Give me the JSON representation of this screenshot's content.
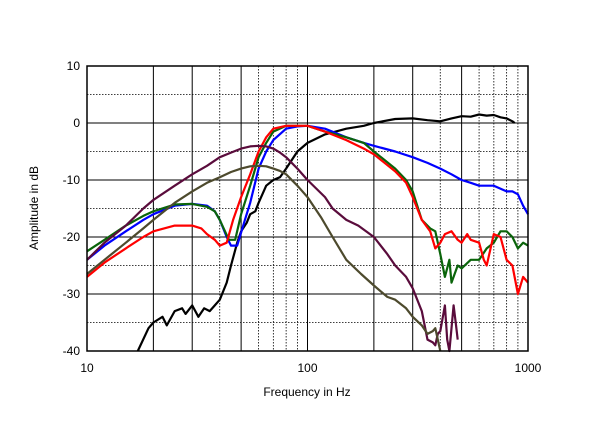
{
  "chart_data": {
    "type": "line",
    "title": "",
    "xlabel": "Frequency in Hz",
    "ylabel": "Amplitude in dB",
    "xscale": "log",
    "xlim": [
      10,
      1000
    ],
    "ylim": [
      -40,
      10
    ],
    "xticks": [
      "10",
      "100",
      "1000"
    ],
    "yticks": [
      "10",
      "0",
      "-10",
      "-20",
      "-30",
      "-40"
    ],
    "grid": true,
    "legend": "none",
    "series": [
      {
        "name": "black",
        "color": "#000000",
        "points": [
          [
            17,
            -40
          ],
          [
            19,
            -36
          ],
          [
            20,
            -35
          ],
          [
            22,
            -34
          ],
          [
            23,
            -35.5
          ],
          [
            25,
            -33
          ],
          [
            27,
            -32.5
          ],
          [
            28,
            -33.5
          ],
          [
            30,
            -32
          ],
          [
            32,
            -34
          ],
          [
            34,
            -32.5
          ],
          [
            36,
            -33
          ],
          [
            38,
            -32
          ],
          [
            40,
            -31
          ],
          [
            43,
            -28
          ],
          [
            45,
            -25
          ],
          [
            48,
            -21
          ],
          [
            50,
            -19
          ],
          [
            53,
            -17.5
          ],
          [
            55,
            -16
          ],
          [
            58,
            -15.5
          ],
          [
            60,
            -14
          ],
          [
            65,
            -11
          ],
          [
            70,
            -10
          ],
          [
            75,
            -9.5
          ],
          [
            80,
            -8
          ],
          [
            90,
            -5
          ],
          [
            100,
            -3.5
          ],
          [
            120,
            -2
          ],
          [
            150,
            -1
          ],
          [
            180,
            -0.5
          ],
          [
            200,
            0
          ],
          [
            250,
            0.7
          ],
          [
            300,
            0.8
          ],
          [
            350,
            0.5
          ],
          [
            400,
            0.3
          ],
          [
            450,
            0.8
          ],
          [
            500,
            1.2
          ],
          [
            550,
            1.1
          ],
          [
            600,
            1.5
          ],
          [
            650,
            1.3
          ],
          [
            700,
            1.4
          ],
          [
            750,
            1
          ],
          [
            800,
            0.8
          ],
          [
            850,
            0.3
          ],
          [
            870,
            0
          ]
        ]
      },
      {
        "name": "blue",
        "color": "#0000ff",
        "points": [
          [
            10,
            -24
          ],
          [
            12,
            -21.5
          ],
          [
            15,
            -19
          ],
          [
            18,
            -17
          ],
          [
            20,
            -16
          ],
          [
            25,
            -14.5
          ],
          [
            30,
            -14.2
          ],
          [
            35,
            -14.5
          ],
          [
            38,
            -15.5
          ],
          [
            40,
            -17
          ],
          [
            43,
            -20
          ],
          [
            45,
            -21.5
          ],
          [
            48,
            -21.5
          ],
          [
            52,
            -17
          ],
          [
            55,
            -14
          ],
          [
            60,
            -8
          ],
          [
            65,
            -5
          ],
          [
            70,
            -3
          ],
          [
            80,
            -1
          ],
          [
            90,
            -0.6
          ],
          [
            100,
            -0.5
          ],
          [
            120,
            -1
          ],
          [
            150,
            -2.5
          ],
          [
            180,
            -3.5
          ],
          [
            200,
            -4
          ],
          [
            250,
            -5
          ],
          [
            300,
            -6
          ],
          [
            350,
            -7
          ],
          [
            400,
            -8
          ],
          [
            450,
            -9
          ],
          [
            500,
            -10
          ],
          [
            550,
            -10.5
          ],
          [
            600,
            -11
          ],
          [
            700,
            -11
          ],
          [
            800,
            -12
          ],
          [
            850,
            -12
          ],
          [
            900,
            -12.5
          ],
          [
            950,
            -14.5
          ],
          [
            1000,
            -16
          ]
        ]
      },
      {
        "name": "green",
        "color": "#0a640a",
        "points": [
          [
            10,
            -22.5
          ],
          [
            12,
            -20.5
          ],
          [
            15,
            -18
          ],
          [
            18,
            -16.3
          ],
          [
            20,
            -15.5
          ],
          [
            25,
            -14.3
          ],
          [
            30,
            -14.2
          ],
          [
            35,
            -14.7
          ],
          [
            38,
            -15.5
          ],
          [
            40,
            -17
          ],
          [
            44,
            -20.5
          ],
          [
            47,
            -20.5
          ],
          [
            50,
            -16
          ],
          [
            55,
            -11
          ],
          [
            60,
            -6
          ],
          [
            65,
            -3.5
          ],
          [
            70,
            -1.5
          ],
          [
            80,
            -0.5
          ],
          [
            90,
            -0.5
          ],
          [
            100,
            -0.5
          ],
          [
            120,
            -1.5
          ],
          [
            150,
            -2.5
          ],
          [
            180,
            -3.5
          ],
          [
            200,
            -5
          ],
          [
            250,
            -8
          ],
          [
            280,
            -10
          ],
          [
            300,
            -12
          ],
          [
            330,
            -17
          ],
          [
            360,
            -18.5
          ],
          [
            380,
            -19
          ],
          [
            400,
            -23
          ],
          [
            420,
            -27
          ],
          [
            440,
            -24
          ],
          [
            450,
            -28
          ],
          [
            480,
            -25
          ],
          [
            500,
            -25.5
          ],
          [
            550,
            -24
          ],
          [
            600,
            -24
          ],
          [
            650,
            -22
          ],
          [
            700,
            -21
          ],
          [
            750,
            -19
          ],
          [
            800,
            -19
          ],
          [
            850,
            -20
          ],
          [
            900,
            -22
          ],
          [
            950,
            -21
          ],
          [
            1000,
            -21.5
          ]
        ]
      },
      {
        "name": "red",
        "color": "#ff0000",
        "points": [
          [
            10,
            -27
          ],
          [
            12,
            -24.5
          ],
          [
            15,
            -22
          ],
          [
            18,
            -20
          ],
          [
            20,
            -19
          ],
          [
            25,
            -18
          ],
          [
            30,
            -18
          ],
          [
            33,
            -18.5
          ],
          [
            35,
            -19.5
          ],
          [
            38,
            -20.5
          ],
          [
            40,
            -21.5
          ],
          [
            43,
            -21
          ],
          [
            46,
            -17
          ],
          [
            50,
            -13
          ],
          [
            55,
            -9
          ],
          [
            60,
            -5
          ],
          [
            65,
            -2.5
          ],
          [
            70,
            -1
          ],
          [
            80,
            -0.5
          ],
          [
            90,
            -0.5
          ],
          [
            100,
            -0.5
          ],
          [
            120,
            -1.5
          ],
          [
            150,
            -3
          ],
          [
            180,
            -4.5
          ],
          [
            200,
            -5.5
          ],
          [
            250,
            -8.5
          ],
          [
            280,
            -10.5
          ],
          [
            300,
            -13
          ],
          [
            330,
            -17
          ],
          [
            360,
            -19
          ],
          [
            380,
            -22
          ],
          [
            400,
            -21
          ],
          [
            420,
            -19.5
          ],
          [
            450,
            -19
          ],
          [
            480,
            -20.5
          ],
          [
            500,
            -21
          ],
          [
            530,
            -19.5
          ],
          [
            550,
            -20.5
          ],
          [
            600,
            -21
          ],
          [
            630,
            -24
          ],
          [
            650,
            -25
          ],
          [
            700,
            -19.5
          ],
          [
            750,
            -20
          ],
          [
            800,
            -24
          ],
          [
            850,
            -25
          ],
          [
            900,
            -30
          ],
          [
            950,
            -27
          ],
          [
            1000,
            -28
          ]
        ]
      },
      {
        "name": "maroon",
        "color": "#5a0c3c",
        "points": [
          [
            10,
            -24
          ],
          [
            12,
            -21
          ],
          [
            15,
            -18
          ],
          [
            18,
            -15
          ],
          [
            20,
            -13.5
          ],
          [
            25,
            -11
          ],
          [
            30,
            -9
          ],
          [
            35,
            -7.5
          ],
          [
            40,
            -6
          ],
          [
            45,
            -5.2
          ],
          [
            50,
            -4.5
          ],
          [
            55,
            -4.1
          ],
          [
            60,
            -4
          ],
          [
            65,
            -4.1
          ],
          [
            70,
            -4.5
          ],
          [
            75,
            -5.2
          ],
          [
            80,
            -6
          ],
          [
            90,
            -8
          ],
          [
            100,
            -10
          ],
          [
            120,
            -13
          ],
          [
            130,
            -15
          ],
          [
            150,
            -17
          ],
          [
            170,
            -18
          ],
          [
            200,
            -20
          ],
          [
            230,
            -23
          ],
          [
            250,
            -25
          ],
          [
            280,
            -27
          ],
          [
            300,
            -29
          ],
          [
            330,
            -33
          ],
          [
            350,
            -38
          ],
          [
            370,
            -38.5
          ],
          [
            380,
            -39
          ],
          [
            390,
            -37
          ],
          [
            400,
            -36.5
          ],
          [
            420,
            -32
          ],
          [
            430,
            -38
          ],
          [
            440,
            -42
          ],
          [
            450,
            -36
          ],
          [
            460,
            -32
          ],
          [
            470,
            -35
          ],
          [
            480,
            -38
          ]
        ]
      },
      {
        "name": "olive",
        "color": "#4d4a2d",
        "points": [
          [
            10,
            -26.5
          ],
          [
            12,
            -24
          ],
          [
            15,
            -21
          ],
          [
            18,
            -18.5
          ],
          [
            20,
            -17
          ],
          [
            25,
            -14
          ],
          [
            30,
            -12
          ],
          [
            35,
            -10.5
          ],
          [
            40,
            -9.5
          ],
          [
            45,
            -8.6
          ],
          [
            50,
            -8
          ],
          [
            55,
            -7.6
          ],
          [
            60,
            -7.5
          ],
          [
            65,
            -7.6
          ],
          [
            70,
            -8
          ],
          [
            75,
            -8.4
          ],
          [
            80,
            -9
          ],
          [
            90,
            -11
          ],
          [
            100,
            -13
          ],
          [
            115,
            -16.5
          ],
          [
            130,
            -20
          ],
          [
            150,
            -24
          ],
          [
            175,
            -26.5
          ],
          [
            200,
            -28.5
          ],
          [
            230,
            -30.5
          ],
          [
            250,
            -31
          ],
          [
            280,
            -32.5
          ],
          [
            300,
            -34
          ],
          [
            330,
            -35.5
          ],
          [
            350,
            -37
          ],
          [
            370,
            -36.5
          ],
          [
            380,
            -36
          ],
          [
            390,
            -38
          ],
          [
            400,
            -42
          ]
        ]
      }
    ]
  }
}
